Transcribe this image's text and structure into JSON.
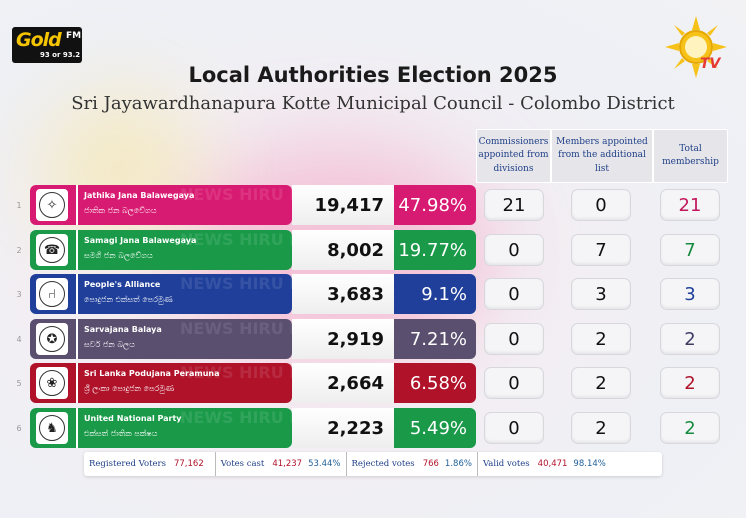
{
  "brand": {
    "gold_word": "Gold",
    "gold_fm": "FM",
    "gold_freq": "93 or 93.2",
    "hiru_tv": "TV",
    "watermark": "NEWS HIRU NEWS HIRU NEWS"
  },
  "title": "Local Authorities Election 2025",
  "subtitle": "Sri Jayawardhanapura Kotte Municipal Council - Colombo District",
  "headers": {
    "commissioners": "Commissioners appointed from divisions",
    "additional": "Members appointed from the additional list",
    "total": "Total membership"
  },
  "parties": [
    {
      "rank": "1",
      "name": "Jathika Jana Balawegaya",
      "name_si": "ජාතික ජන බලවේගය",
      "votes": "19,417",
      "pct": "47.98%",
      "commissioners": "21",
      "additional": "0",
      "total": "21",
      "color": "#d81b72",
      "total_color": "#c2185b",
      "symbol": "compass-icon",
      "glyph": "✧"
    },
    {
      "rank": "2",
      "name": "Samagi Jana Balawegaya",
      "name_si": "සමගි ජන බලවේගය",
      "votes": "8,002",
      "pct": "19.77%",
      "commissioners": "0",
      "additional": "7",
      "total": "7",
      "color": "#1a9a49",
      "total_color": "#168a3e",
      "symbol": "telephone-icon",
      "glyph": "☎"
    },
    {
      "rank": "3",
      "name": "People's Alliance",
      "name_si": "පොදුජන එක්සත් පෙරමුණ",
      "votes": "3,683",
      "pct": "9.1%",
      "commissioners": "0",
      "additional": "3",
      "total": "3",
      "color": "#1f3f9a",
      "total_color": "#1f3f9a",
      "symbol": "chair-icon",
      "glyph": "⑁"
    },
    {
      "rank": "4",
      "name": "Sarvajana Balaya",
      "name_si": "සර්ව ජන බලය",
      "votes": "2,919",
      "pct": "7.21%",
      "commissioners": "0",
      "additional": "2",
      "total": "2",
      "color": "#5a4f6f",
      "total_color": "#3d3a66",
      "symbol": "medal-icon",
      "glyph": "✪"
    },
    {
      "rank": "5",
      "name": "Sri Lanka Podujana Peramuna",
      "name_si": "ශ්‍රී ලංකා පොදුජන පෙරමුණ",
      "votes": "2,664",
      "pct": "6.58%",
      "commissioners": "0",
      "additional": "2",
      "total": "2",
      "color": "#b0122a",
      "total_color": "#b0122a",
      "symbol": "flower-icon",
      "glyph": "❀"
    },
    {
      "rank": "6",
      "name": "United National Party",
      "name_si": "එක්සත් ජාතික පක්ෂය",
      "votes": "2,223",
      "pct": "5.49%",
      "commissioners": "0",
      "additional": "2",
      "total": "2",
      "color": "#1a9a49",
      "total_color": "#168a3e",
      "symbol": "elephant-icon",
      "glyph": "♞"
    }
  ],
  "footer": {
    "registered_label": "Registered Voters",
    "registered_value": "77,162",
    "cast_label": "Votes cast",
    "cast_value": "41,237",
    "cast_pct": "53.44%",
    "rejected_label": "Rejected votes",
    "rejected_value": "766",
    "rejected_pct": "1.86%",
    "valid_label": "Valid votes",
    "valid_value": "40,471",
    "valid_pct": "98.14%"
  }
}
